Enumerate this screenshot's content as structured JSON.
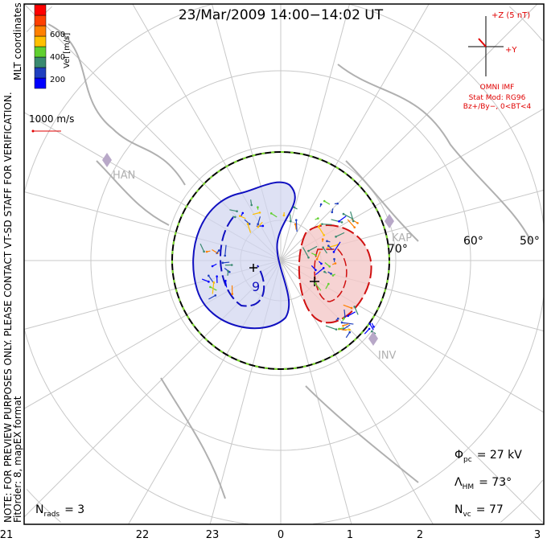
{
  "title": "23/Mar/2009 14:00−14:02 UT",
  "side_note": "NOTE: FOR PREVIEW PURPOSES ONLY. PLEASE CONTACT VT-SD STAFF FOR VERIFICATION.",
  "coords": "MLT coordinates",
  "fit_order": "FitOrder: 8, mapEX format",
  "colorbar": {
    "label": "Vel [m/s]",
    "ticks": [
      "200",
      "400",
      "600"
    ],
    "colors": [
      "#0000ff",
      "#2040c0",
      "#3a8a70",
      "#60d030",
      "#ffc000",
      "#ff8000",
      "#ff4000",
      "#ff0000"
    ]
  },
  "scale_vector": "1000 m/s",
  "imf": {
    "z_label": "+Z (5 nT)",
    "y_label": "+Y",
    "source": "OMNI IMF",
    "model": "Stat Mod: RG96",
    "condition": "Bz+/By−, 0<BT<4"
  },
  "latitude_labels": [
    "70°",
    "60°",
    "50°"
  ],
  "stations": [
    "HAN",
    "KAP",
    "INV"
  ],
  "mlt_labels": [
    "21",
    "22",
    "23",
    "0",
    "1",
    "2",
    "3"
  ],
  "stats": {
    "phi_pc": "= 27 kV",
    "lambda_hm": "= 73°",
    "n_vc": "= 77",
    "n_rads": "= 3"
  },
  "contour_label": "9"
}
